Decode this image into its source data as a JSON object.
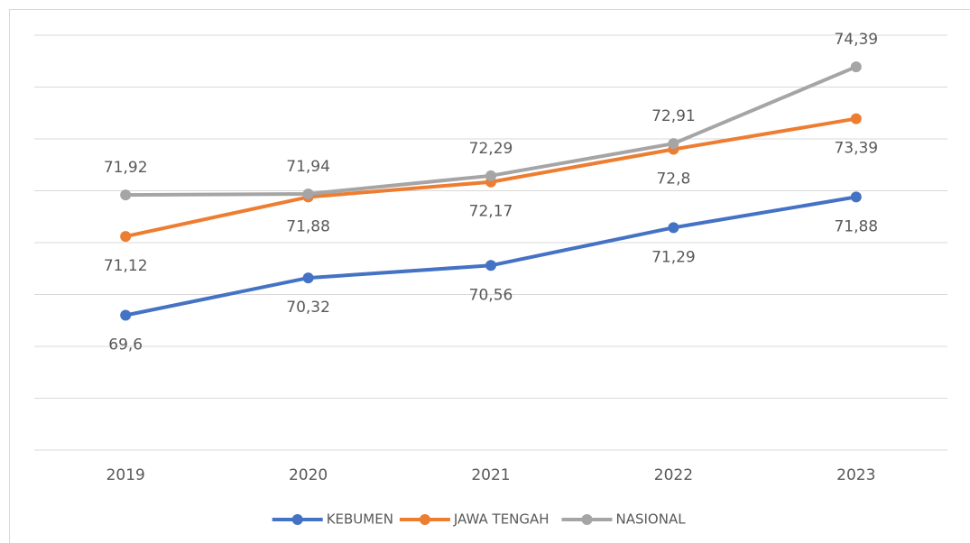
{
  "chart_data": {
    "type": "line",
    "categories": [
      "2019",
      "2020",
      "2021",
      "2022",
      "2023"
    ],
    "series": [
      {
        "name": "KEBUMEN",
        "color": "#4472c4",
        "values": [
          69.6,
          70.32,
          70.56,
          71.29,
          71.88
        ],
        "value_labels": [
          "69,6",
          "70,32",
          "70,56",
          "71,29",
          "71,88"
        ]
      },
      {
        "name": "JAWA TENGAH",
        "color": "#ed7d31",
        "values": [
          71.12,
          71.88,
          72.17,
          72.8,
          73.39
        ],
        "value_labels": [
          "71,12",
          "71,88",
          "72,17",
          "72,8",
          "73,39"
        ]
      },
      {
        "name": "NASIONAL",
        "color": "#a5a5a5",
        "values": [
          71.92,
          71.94,
          72.29,
          72.91,
          74.39
        ],
        "value_labels": [
          "71,92",
          "71,94",
          "72,29",
          "72,91",
          "74,39"
        ]
      }
    ],
    "ylim": [
      67,
      75
    ],
    "yticks": [
      67,
      68,
      69,
      70,
      71,
      72,
      73,
      74,
      75
    ],
    "grid": true,
    "legend": "bottom"
  }
}
